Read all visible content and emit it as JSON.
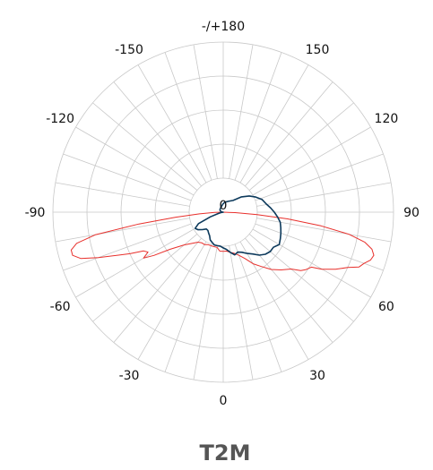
{
  "chart_data": {
    "type": "polar-line",
    "title": "T2M",
    "center_label": "0",
    "angle_labels": [
      {
        "angle": 0,
        "text": "0"
      },
      {
        "angle": 30,
        "text": "30"
      },
      {
        "angle": 60,
        "text": "60"
      },
      {
        "angle": 90,
        "text": "90"
      },
      {
        "angle": 120,
        "text": "120"
      },
      {
        "angle": 150,
        "text": "150"
      },
      {
        "angle": 180,
        "text": "-/+180"
      },
      {
        "angle": -150,
        "text": "-150"
      },
      {
        "angle": -120,
        "text": "-120"
      },
      {
        "angle": -90,
        "text": "-90"
      },
      {
        "angle": -60,
        "text": "-60"
      },
      {
        "angle": -30,
        "text": "-30"
      }
    ],
    "radial_range": [
      0,
      1
    ],
    "angular_grid_step_deg": 10,
    "grid": true,
    "series": [
      {
        "color": "#e8302c",
        "points": [
          [
            -90,
            0.0
          ],
          [
            -88,
            0.05
          ],
          [
            -86,
            0.14
          ],
          [
            -84,
            0.28
          ],
          [
            -82,
            0.5
          ],
          [
            -80,
            0.76
          ],
          [
            -78,
            0.88
          ],
          [
            -76,
            0.92
          ],
          [
            -74,
            0.92
          ],
          [
            -72,
            0.88
          ],
          [
            -70,
            0.78
          ],
          [
            -68,
            0.68
          ],
          [
            -66,
            0.6
          ],
          [
            -64,
            0.52
          ],
          [
            -62,
            0.5
          ],
          [
            -60,
            0.54
          ],
          [
            -58,
            0.48
          ],
          [
            -55,
            0.38
          ],
          [
            -50,
            0.3
          ],
          [
            -45,
            0.26
          ],
          [
            -40,
            0.23
          ],
          [
            -35,
            0.22
          ],
          [
            -30,
            0.22
          ],
          [
            -25,
            0.21
          ],
          [
            -20,
            0.21
          ],
          [
            -15,
            0.21
          ],
          [
            -10,
            0.21
          ],
          [
            -5,
            0.23
          ],
          [
            0,
            0.23
          ],
          [
            5,
            0.23
          ],
          [
            10,
            0.24
          ],
          [
            15,
            0.25
          ],
          [
            20,
            0.27
          ],
          [
            25,
            0.3
          ],
          [
            30,
            0.35
          ],
          [
            35,
            0.39
          ],
          [
            40,
            0.44
          ],
          [
            45,
            0.48
          ],
          [
            50,
            0.52
          ],
          [
            53,
            0.57
          ],
          [
            55,
            0.59
          ],
          [
            58,
            0.61
          ],
          [
            60,
            0.67
          ],
          [
            63,
            0.74
          ],
          [
            66,
            0.8
          ],
          [
            68,
            0.86
          ],
          [
            70,
            0.88
          ],
          [
            72,
            0.91
          ],
          [
            74,
            0.92
          ],
          [
            76,
            0.9
          ],
          [
            78,
            0.85
          ],
          [
            80,
            0.75
          ],
          [
            82,
            0.58
          ],
          [
            84,
            0.38
          ],
          [
            86,
            0.2
          ],
          [
            88,
            0.07
          ],
          [
            90,
            0.0
          ]
        ]
      },
      {
        "color": "#0d3a5c",
        "points": [
          [
            -90,
            0.0
          ],
          [
            -100,
            0.01
          ],
          [
            -115,
            0.02
          ],
          [
            -130,
            0.025
          ],
          [
            -150,
            0.03
          ],
          [
            -170,
            0.04
          ],
          [
            180,
            0.05
          ],
          [
            170,
            0.06
          ],
          [
            155,
            0.07
          ],
          [
            140,
            0.09
          ],
          [
            130,
            0.14
          ],
          [
            122,
            0.18
          ],
          [
            115,
            0.21
          ],
          [
            108,
            0.24
          ],
          [
            100,
            0.26
          ],
          [
            95,
            0.28
          ],
          [
            90,
            0.3
          ],
          [
            85,
            0.32
          ],
          [
            80,
            0.34
          ],
          [
            75,
            0.35
          ],
          [
            70,
            0.36
          ],
          [
            65,
            0.37
          ],
          [
            60,
            0.38
          ],
          [
            55,
            0.36
          ],
          [
            50,
            0.36
          ],
          [
            45,
            0.35
          ],
          [
            40,
            0.33
          ],
          [
            35,
            0.3
          ],
          [
            30,
            0.28
          ],
          [
            25,
            0.26
          ],
          [
            20,
            0.25
          ],
          [
            15,
            0.26
          ],
          [
            10,
            0.24
          ],
          [
            5,
            0.22
          ],
          [
            0,
            0.21
          ],
          [
            -5,
            0.2
          ],
          [
            -10,
            0.2
          ],
          [
            -15,
            0.2
          ],
          [
            -20,
            0.19
          ],
          [
            -25,
            0.18
          ],
          [
            -30,
            0.16
          ],
          [
            -35,
            0.15
          ],
          [
            -40,
            0.14
          ],
          [
            -45,
            0.14
          ],
          [
            -50,
            0.16
          ],
          [
            -55,
            0.18
          ],
          [
            -60,
            0.19
          ],
          [
            -65,
            0.16
          ],
          [
            -70,
            0.08
          ],
          [
            -75,
            0.03
          ],
          [
            -80,
            0.01
          ],
          [
            -90,
            0.0
          ]
        ]
      }
    ]
  }
}
